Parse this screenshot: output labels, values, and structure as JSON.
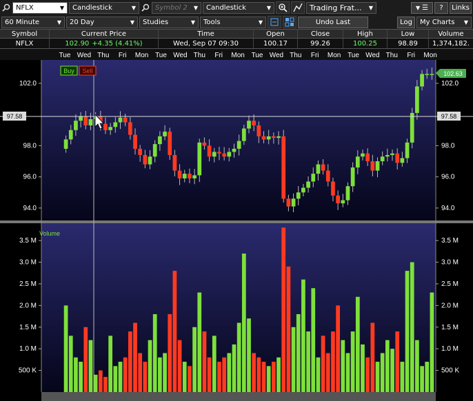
{
  "toolbar": {
    "symbol": "NFLX",
    "chart_type_1": "Candlestick",
    "symbol2_placeholder": "Symbol 2",
    "chart_type_2": "Candlestick",
    "layout": "Trading Frat...",
    "links_label": "Links",
    "help_label": "?",
    "interval": "60 Minute",
    "range": "20 Day",
    "studies_label": "Studies",
    "tools_label": "Tools",
    "undo_label": "Undo Last",
    "log_label": "Log",
    "my_charts_label": "My Charts"
  },
  "quote": {
    "headers": [
      "Symbol",
      "Current Price",
      "Time",
      "Open",
      "Close",
      "High",
      "Low",
      "Volume"
    ],
    "symbol": "NFLX",
    "price": "102.90",
    "change": "+4.35 (4.41%)",
    "time": "Wed, Sep 07  09:30",
    "open": "100.17",
    "close": "99.26",
    "high": "100.25",
    "low": "98.89",
    "volume": "1,374,182."
  },
  "chart": {
    "buy_label": "Buy",
    "sell_label": "Sell",
    "volume_label": "Volume",
    "crosshair_price": "97.58",
    "last_price": "102.63",
    "day_labels": [
      "Tue",
      "Wed",
      "Thu",
      "Fri",
      "Mon",
      "Tue",
      "Wed",
      "Thu",
      "Fri",
      "Mon",
      "Tue",
      "Wed",
      "Thu",
      "Fri",
      "Mon",
      "Tue",
      "Wed",
      "Thu",
      "Fri",
      "Mon"
    ],
    "price_ticks": [
      "102.0",
      "98.0",
      "96.0",
      "94.0"
    ],
    "price_tick_values": [
      102.0,
      98.0,
      96.0,
      94.0
    ],
    "volume_ticks": [
      "3.5 M",
      "3.0 M",
      "2.5 M",
      "2.0 M",
      "1.5 M",
      "1.0 M",
      "500 K"
    ],
    "volume_tick_values": [
      3500000,
      3000000,
      2500000,
      2000000,
      1500000,
      1000000,
      500000
    ],
    "colors": {
      "up": "#7ee03a",
      "down": "#ff3a20",
      "bg_top": "#2a2a6e",
      "bg_bottom": "#05051a",
      "price_badge": "#4caf50"
    }
  },
  "chart_data": {
    "type": "candlestick",
    "price_range": [
      93.2,
      103.5
    ],
    "volume_range": [
      0,
      3900000
    ],
    "closes": [
      98.4,
      99.0,
      99.6,
      99.9,
      99.3,
      99.7,
      99.9,
      99.4,
      99.0,
      99.2,
      99.5,
      99.8,
      99.5,
      98.7,
      97.8,
      97.4,
      96.8,
      97.3,
      98.1,
      98.6,
      98.9,
      97.4,
      96.4,
      95.9,
      96.2,
      95.9,
      96.1,
      98.2,
      98.0,
      97.3,
      97.6,
      97.5,
      97.3,
      97.6,
      97.8,
      98.3,
      99.1,
      99.6,
      99.3,
      98.6,
      98.4,
      98.6,
      98.5,
      98.6,
      94.6,
      94.1,
      94.6,
      95.0,
      95.3,
      95.7,
      96.2,
      96.8,
      96.4,
      95.7,
      94.8,
      94.3,
      94.5,
      95.4,
      96.6,
      97.3,
      97.5,
      97.0,
      96.4,
      97.0,
      97.3,
      97.4,
      97.5,
      96.9,
      97.2,
      98.2,
      100.1,
      101.8,
      102.6,
      102.6,
      102.6
    ],
    "volumes": [
      2000000,
      1300000,
      800000,
      700000,
      1500000,
      1200000,
      400000,
      500000,
      350000,
      1300000,
      600000,
      700000,
      800000,
      1400000,
      1600000,
      900000,
      700000,
      1200000,
      1800000,
      800000,
      900000,
      1800000,
      2800000,
      1200000,
      700000,
      600000,
      1500000,
      2300000,
      1400000,
      800000,
      1300000,
      700000,
      800000,
      900000,
      1100000,
      1600000,
      3200000,
      1700000,
      900000,
      800000,
      700000,
      600000,
      700000,
      800000,
      3800000,
      2900000,
      1500000,
      1800000,
      2600000,
      1400000,
      2400000,
      800000,
      1300000,
      900000,
      1400000,
      2000000,
      1200000,
      900000,
      1400000,
      2200000,
      1100000,
      800000,
      1600000,
      700000,
      900000,
      1200000,
      1000000,
      1400000,
      700000,
      2800000,
      3000000,
      1200000,
      600000,
      700000,
      2300000
    ]
  }
}
